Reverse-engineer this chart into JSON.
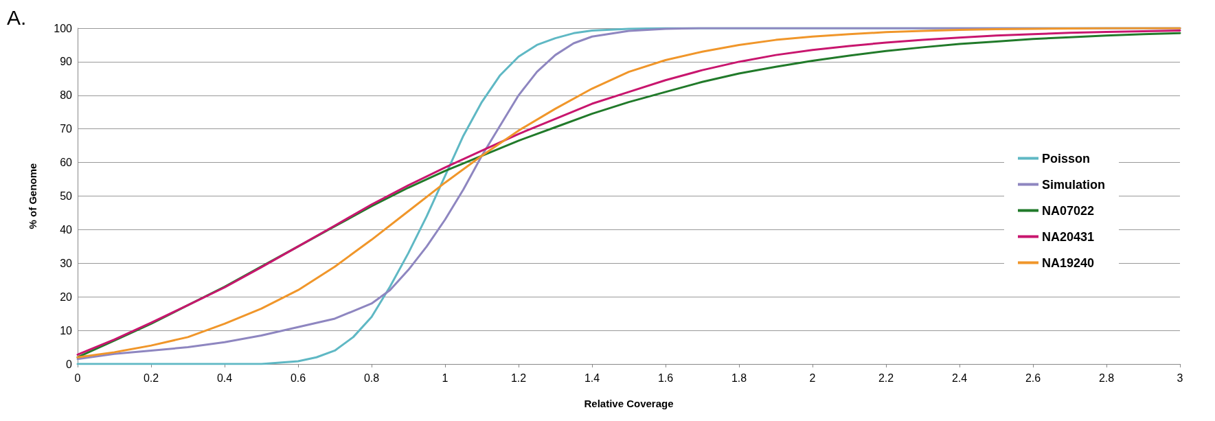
{
  "chart_data": {
    "type": "line",
    "title": "A.",
    "xlabel": "Relative Coverage",
    "ylabel": "% of Genome",
    "xlim": [
      0,
      3
    ],
    "xticks": [
      0,
      0.2,
      0.4,
      0.6,
      0.8,
      1,
      1.2,
      1.4,
      1.6,
      1.8,
      2,
      2.2,
      2.4,
      2.6,
      2.8,
      3
    ],
    "ylim": [
      0,
      100
    ],
    "yticks": [
      0,
      10,
      20,
      30,
      40,
      50,
      60,
      70,
      80,
      90,
      100
    ],
    "grid": "y",
    "legend": "right",
    "marker": "none",
    "line_style": "solid",
    "series": [
      {
        "name": "Poisson",
        "color": "#5fb8c4",
        "x": [
          0,
          0.5,
          0.6,
          0.65,
          0.7,
          0.75,
          0.8,
          0.85,
          0.9,
          0.95,
          1,
          1.05,
          1.1,
          1.15,
          1.2,
          1.25,
          1.3,
          1.35,
          1.4,
          1.5,
          1.6,
          3
        ],
        "values": [
          0,
          0,
          0.8,
          2,
          4,
          8,
          14,
          23,
          33,
          44,
          56,
          68,
          78,
          86,
          91.5,
          95,
          97,
          98.5,
          99.3,
          99.8,
          100,
          100
        ]
      },
      {
        "name": "Simulation",
        "color": "#8e86c0",
        "x": [
          0,
          0.1,
          0.2,
          0.3,
          0.4,
          0.5,
          0.6,
          0.7,
          0.8,
          0.85,
          0.9,
          0.95,
          1,
          1.05,
          1.1,
          1.15,
          1.2,
          1.25,
          1.3,
          1.35,
          1.4,
          1.5,
          1.6,
          1.7,
          3
        ],
        "values": [
          1.5,
          3,
          4,
          5,
          6.5,
          8.5,
          11,
          13.5,
          18,
          22,
          28,
          35,
          43,
          52,
          62,
          71,
          80,
          87,
          92,
          95.5,
          97.5,
          99.2,
          99.8,
          100,
          100
        ]
      },
      {
        "name": "NA07022",
        "color": "#217a2a",
        "x": [
          0,
          0.1,
          0.2,
          0.3,
          0.4,
          0.5,
          0.6,
          0.7,
          0.8,
          0.9,
          1,
          1.1,
          1.2,
          1.3,
          1.4,
          1.5,
          1.6,
          1.7,
          1.8,
          1.9,
          2,
          2.1,
          2.2,
          2.3,
          2.4,
          2.5,
          2.6,
          2.7,
          2.8,
          2.9,
          3
        ],
        "values": [
          2,
          7,
          12,
          17.5,
          23,
          29,
          35,
          41,
          47,
          52.5,
          57.5,
          62,
          66.5,
          70.5,
          74.5,
          78,
          81,
          84,
          86.5,
          88.5,
          90.3,
          91.8,
          93.2,
          94.3,
          95.3,
          96,
          96.8,
          97.3,
          97.8,
          98.2,
          98.5
        ]
      },
      {
        "name": "NA20431",
        "color": "#c8166e",
        "x": [
          0,
          0.1,
          0.2,
          0.3,
          0.4,
          0.5,
          0.6,
          0.7,
          0.8,
          0.9,
          1,
          1.1,
          1.2,
          1.3,
          1.4,
          1.5,
          1.6,
          1.7,
          1.8,
          1.9,
          2,
          2.1,
          2.2,
          2.3,
          2.4,
          2.5,
          2.6,
          2.7,
          2.8,
          2.9,
          3
        ],
        "values": [
          2.8,
          7.3,
          12.3,
          17.5,
          22.8,
          28.8,
          35,
          41.2,
          47.5,
          53.2,
          58.5,
          63.5,
          68.5,
          73,
          77.5,
          81,
          84.5,
          87.5,
          90,
          92,
          93.5,
          94.7,
          95.7,
          96.5,
          97.2,
          97.8,
          98.2,
          98.6,
          98.9,
          99.1,
          99.3
        ]
      },
      {
        "name": "NA19240",
        "color": "#f0962a",
        "x": [
          0,
          0.1,
          0.2,
          0.3,
          0.4,
          0.5,
          0.6,
          0.7,
          0.8,
          0.9,
          1,
          1.1,
          1.2,
          1.3,
          1.4,
          1.5,
          1.6,
          1.7,
          1.8,
          1.9,
          2,
          2.1,
          2.2,
          2.3,
          2.4,
          2.5,
          2.6,
          2.7,
          2.8,
          2.9,
          3
        ],
        "values": [
          2,
          3.5,
          5.5,
          8,
          12,
          16.5,
          22,
          29,
          37,
          45.5,
          54,
          62,
          69.5,
          76,
          82,
          87,
          90.5,
          93,
          95,
          96.5,
          97.5,
          98.2,
          98.8,
          99.2,
          99.5,
          99.7,
          99.8,
          99.9,
          100,
          100,
          100
        ]
      }
    ]
  }
}
